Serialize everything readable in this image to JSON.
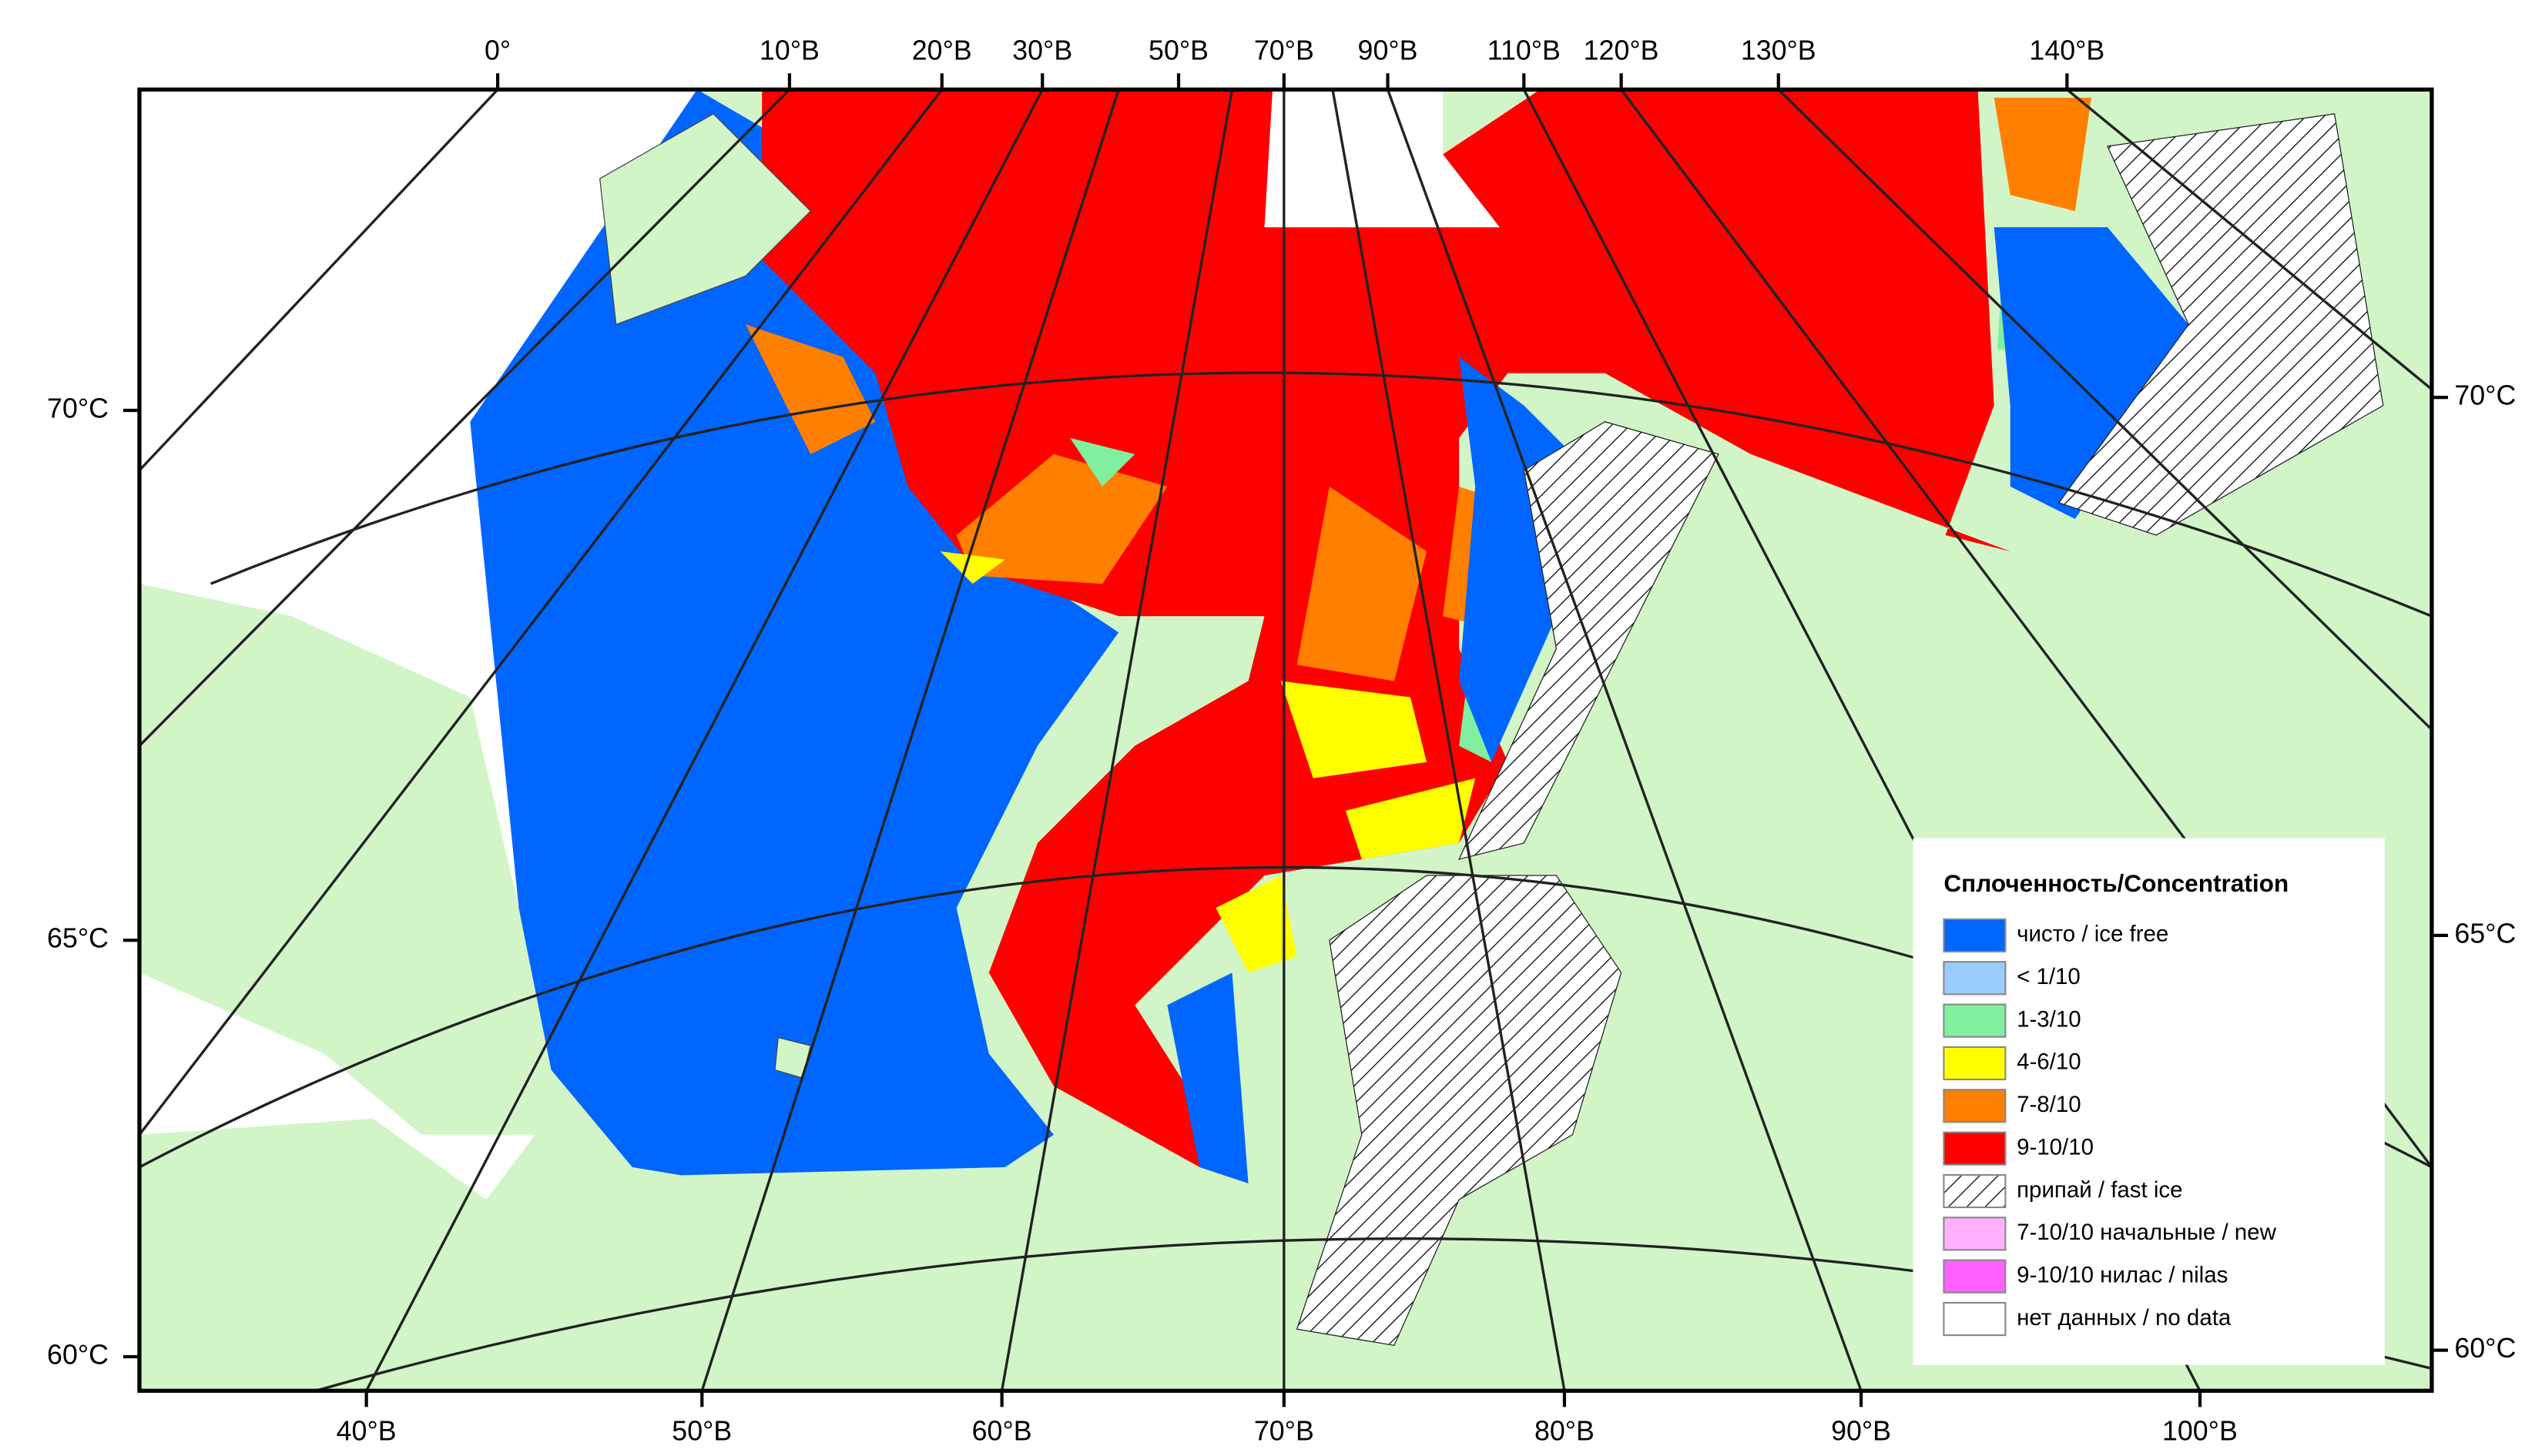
{
  "map": {
    "top_longitude_labels": [
      "0°",
      "10°В",
      "20°В",
      "30°В",
      "50°В",
      "70°В",
      "90°В",
      "110°В",
      "120°В",
      "130°В",
      "140°В"
    ],
    "bottom_longitude_labels": [
      "40°В",
      "50°В",
      "60°В",
      "70°В",
      "80°В",
      "90°В",
      "100°В"
    ],
    "left_latitude_labels": [
      "70°С",
      "65°С",
      "60°С"
    ],
    "right_latitude_labels": [
      "70°С",
      "65°С",
      "60°С"
    ]
  },
  "legend": {
    "title": "Сплоченность/Concentration",
    "items": [
      {
        "label": "чисто / ice free",
        "color": "#0066ff"
      },
      {
        "label": "< 1/10",
        "color": "#99ccff"
      },
      {
        "label": "1-3/10",
        "color": "#80f0a0"
      },
      {
        "label": "4-6/10",
        "color": "#ffff00"
      },
      {
        "label": "7-8/10",
        "color": "#ff8000"
      },
      {
        "label": "9-10/10",
        "color": "#ff0000"
      },
      {
        "label": "припай / fast ice",
        "color": "#ffffff",
        "pattern": "hatch"
      },
      {
        "label": "7-10/10 начальные / new",
        "color": "#ffb0ff"
      },
      {
        "label": "9-10/10 нилас / nilas",
        "color": "#ff60ff"
      },
      {
        "label": "нет данных / no data",
        "color": "#ffffff"
      }
    ]
  }
}
